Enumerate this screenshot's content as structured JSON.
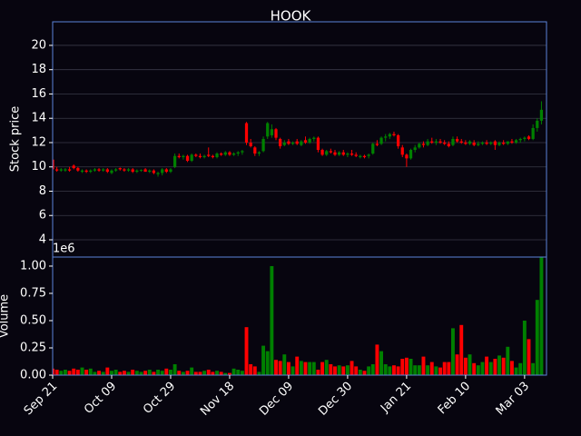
{
  "chart_data": {
    "type": "candlestick",
    "title": "HOOK",
    "ylabel": "Stock price",
    "volume_label": "Volume",
    "volume_offset_label": "1e6",
    "up_color": "#008000",
    "down_color": "#ff0000",
    "grid": true,
    "xlim": [
      0,
      117.2
    ],
    "ylim": [
      2.58,
      21.94
    ],
    "volume_ylim": [
      0,
      1.083
    ],
    "yticks": [
      4,
      6,
      8,
      10,
      12,
      14,
      16,
      18,
      20
    ],
    "volume_yticks": [
      {
        "value": 0,
        "label": "0.00"
      },
      0.25,
      {
        "value": 0.5,
        "label": "0.50"
      },
      0.75,
      {
        "value": 1,
        "label": "1.00"
      }
    ],
    "xticks": [
      {
        "value": 0,
        "label": "Sep 21"
      },
      {
        "value": 14,
        "label": "Oct 09"
      },
      {
        "value": 28,
        "label": "Oct 29"
      },
      {
        "value": 42,
        "label": "Nov 18"
      },
      {
        "value": 56,
        "label": "Dec 09"
      },
      {
        "value": 70,
        "label": "Dec 30"
      },
      {
        "value": 84,
        "label": "Jan 21"
      },
      {
        "value": 98,
        "label": "Feb 10"
      },
      {
        "value": 112,
        "label": "Mar 03"
      }
    ],
    "candles": [
      {
        "open": 10.6,
        "high": 10.9,
        "low": 9.7,
        "close": 9.8,
        "volume": 0.06
      },
      {
        "open": 9.8,
        "high": 10.0,
        "low": 9.6,
        "close": 9.7,
        "volume": 0.05
      },
      {
        "open": 9.7,
        "high": 9.9,
        "low": 9.6,
        "close": 9.8,
        "volume": 0.04
      },
      {
        "open": 9.7,
        "high": 9.9,
        "low": 9.6,
        "close": 9.8,
        "volume": 0.05
      },
      {
        "open": 9.8,
        "high": 10.0,
        "low": 9.6,
        "close": 9.7,
        "volume": 0.04
      },
      {
        "open": 10.1,
        "high": 10.2,
        "low": 9.8,
        "close": 9.9,
        "volume": 0.06
      },
      {
        "open": 9.9,
        "high": 10.0,
        "low": 9.6,
        "close": 9.7,
        "volume": 0.05
      },
      {
        "open": 9.6,
        "high": 9.8,
        "low": 9.5,
        "close": 9.7,
        "volume": 0.07
      },
      {
        "open": 9.7,
        "high": 9.8,
        "low": 9.5,
        "close": 9.6,
        "volume": 0.05
      },
      {
        "open": 9.6,
        "high": 9.8,
        "low": 9.5,
        "close": 9.7,
        "volume": 0.06
      },
      {
        "open": 9.7,
        "high": 9.9,
        "low": 9.6,
        "close": 9.8,
        "volume": 0.03
      },
      {
        "open": 9.8,
        "high": 9.9,
        "low": 9.6,
        "close": 9.7,
        "volume": 0.04
      },
      {
        "open": 9.7,
        "high": 9.9,
        "low": 9.6,
        "close": 9.8,
        "volume": 0.03
      },
      {
        "open": 9.8,
        "high": 9.9,
        "low": 9.5,
        "close": 9.6,
        "volume": 0.07
      },
      {
        "open": 9.5,
        "high": 9.8,
        "low": 9.4,
        "close": 9.7,
        "volume": 0.04
      },
      {
        "open": 9.7,
        "high": 9.9,
        "low": 9.6,
        "close": 9.8,
        "volume": 0.05
      },
      {
        "open": 9.9,
        "high": 9.95,
        "low": 9.7,
        "close": 9.8,
        "volume": 0.03
      },
      {
        "open": 9.8,
        "high": 9.9,
        "low": 9.6,
        "close": 9.7,
        "volume": 0.04
      },
      {
        "open": 9.7,
        "high": 9.9,
        "low": 9.6,
        "close": 9.8,
        "volume": 0.03
      },
      {
        "open": 9.8,
        "high": 9.9,
        "low": 9.5,
        "close": 9.6,
        "volume": 0.05
      },
      {
        "open": 9.6,
        "high": 9.8,
        "low": 9.5,
        "close": 9.7,
        "volume": 0.04
      },
      {
        "open": 9.7,
        "high": 9.8,
        "low": 9.6,
        "close": 9.75,
        "volume": 0.03
      },
      {
        "open": 9.8,
        "high": 9.9,
        "low": 9.6,
        "close": 9.6,
        "volume": 0.04
      },
      {
        "open": 9.6,
        "high": 9.8,
        "low": 9.5,
        "close": 9.7,
        "volume": 0.05
      },
      {
        "open": 9.7,
        "high": 9.8,
        "low": 9.4,
        "close": 9.5,
        "volume": 0.03
      },
      {
        "open": 9.4,
        "high": 9.6,
        "low": 9.2,
        "close": 9.5,
        "volume": 0.05
      },
      {
        "open": 9.5,
        "high": 9.9,
        "low": 9.3,
        "close": 9.8,
        "volume": 0.04
      },
      {
        "open": 9.8,
        "high": 9.9,
        "low": 9.5,
        "close": 9.6,
        "volume": 0.06
      },
      {
        "open": 9.6,
        "high": 9.9,
        "low": 9.5,
        "close": 9.8,
        "volume": 0.05
      },
      {
        "open": 10.0,
        "high": 11.1,
        "low": 9.9,
        "close": 10.9,
        "volume": 0.1
      },
      {
        "open": 10.9,
        "high": 11.1,
        "low": 10.7,
        "close": 10.8,
        "volume": 0.04
      },
      {
        "open": 10.8,
        "high": 11.0,
        "low": 10.6,
        "close": 10.9,
        "volume": 0.03
      },
      {
        "open": 10.9,
        "high": 11.0,
        "low": 10.4,
        "close": 10.5,
        "volume": 0.04
      },
      {
        "open": 10.5,
        "high": 11.1,
        "low": 10.4,
        "close": 11.0,
        "volume": 0.07
      },
      {
        "open": 11.0,
        "high": 11.1,
        "low": 10.8,
        "close": 10.9,
        "volume": 0.03
      },
      {
        "open": 10.9,
        "high": 11.1,
        "low": 10.7,
        "close": 10.8,
        "volume": 0.03
      },
      {
        "open": 10.8,
        "high": 11.0,
        "low": 10.7,
        "close": 10.9,
        "volume": 0.04
      },
      {
        "open": 11.0,
        "high": 11.6,
        "low": 10.8,
        "close": 10.9,
        "volume": 0.05
      },
      {
        "open": 10.9,
        "high": 11.0,
        "low": 10.7,
        "close": 10.8,
        "volume": 0.03
      },
      {
        "open": 10.8,
        "high": 11.2,
        "low": 10.7,
        "close": 11.1,
        "volume": 0.04
      },
      {
        "open": 11.1,
        "high": 11.2,
        "low": 10.9,
        "close": 11.0,
        "volume": 0.03
      },
      {
        "open": 11.0,
        "high": 11.3,
        "low": 10.9,
        "close": 11.2,
        "volume": 0.02
      },
      {
        "open": 11.2,
        "high": 11.3,
        "low": 10.9,
        "close": 11.0,
        "volume": 0.02
      },
      {
        "open": 11.0,
        "high": 11.2,
        "low": 10.9,
        "close": 11.1,
        "volume": 0.06
      },
      {
        "open": 11.1,
        "high": 11.3,
        "low": 10.9,
        "close": 11.2,
        "volume": 0.05
      },
      {
        "open": 11.2,
        "high": 11.4,
        "low": 11.0,
        "close": 11.3,
        "volume": 0.04
      },
      {
        "open": 13.6,
        "high": 13.7,
        "low": 11.8,
        "close": 12.0,
        "volume": 0.44
      },
      {
        "open": 12.0,
        "high": 12.3,
        "low": 11.6,
        "close": 11.7,
        "volume": 0.1
      },
      {
        "open": 11.6,
        "high": 11.7,
        "low": 10.9,
        "close": 11.1,
        "volume": 0.08
      },
      {
        "open": 11.1,
        "high": 11.3,
        "low": 10.9,
        "close": 11.2,
        "volume": 0.03
      },
      {
        "open": 11.3,
        "high": 12.5,
        "low": 11.2,
        "close": 12.3,
        "volume": 0.27
      },
      {
        "open": 12.5,
        "high": 13.7,
        "low": 12.3,
        "close": 13.6,
        "volume": 0.22
      },
      {
        "open": 12.6,
        "high": 13.5,
        "low": 12.4,
        "close": 13.1,
        "volume": 1.0
      },
      {
        "open": 13.1,
        "high": 13.2,
        "low": 12.2,
        "close": 12.4,
        "volume": 0.14
      },
      {
        "open": 12.3,
        "high": 12.4,
        "low": 11.5,
        "close": 11.7,
        "volume": 0.13
      },
      {
        "open": 11.8,
        "high": 12.2,
        "low": 11.7,
        "close": 12.0,
        "volume": 0.19
      },
      {
        "open": 12.1,
        "high": 12.3,
        "low": 11.8,
        "close": 11.9,
        "volume": 0.12
      },
      {
        "open": 11.9,
        "high": 12.1,
        "low": 11.8,
        "close": 12.0,
        "volume": 0.08
      },
      {
        "open": 12.1,
        "high": 12.3,
        "low": 11.8,
        "close": 11.9,
        "volume": 0.17
      },
      {
        "open": 11.8,
        "high": 12.2,
        "low": 11.7,
        "close": 12.1,
        "volume": 0.13
      },
      {
        "open": 12.2,
        "high": 12.5,
        "low": 11.9,
        "close": 12.0,
        "volume": 0.12
      },
      {
        "open": 12.0,
        "high": 12.4,
        "low": 11.9,
        "close": 12.3,
        "volume": 0.12
      },
      {
        "open": 12.3,
        "high": 12.5,
        "low": 12.1,
        "close": 12.4,
        "volume": 0.12
      },
      {
        "open": 12.4,
        "high": 12.5,
        "low": 11.2,
        "close": 11.4,
        "volume": 0.05
      },
      {
        "open": 11.4,
        "high": 11.5,
        "low": 10.9,
        "close": 11.0,
        "volume": 0.12
      },
      {
        "open": 11.0,
        "high": 11.4,
        "low": 10.9,
        "close": 11.3,
        "volume": 0.14
      },
      {
        "open": 11.3,
        "high": 11.5,
        "low": 11.1,
        "close": 11.2,
        "volume": 0.1
      },
      {
        "open": 11.2,
        "high": 11.4,
        "low": 10.9,
        "close": 11.0,
        "volume": 0.08
      },
      {
        "open": 11.0,
        "high": 11.3,
        "low": 10.9,
        "close": 11.2,
        "volume": 0.09
      },
      {
        "open": 11.2,
        "high": 11.4,
        "low": 10.9,
        "close": 11.0,
        "volume": 0.08
      },
      {
        "open": 11.0,
        "high": 11.2,
        "low": 10.8,
        "close": 11.1,
        "volume": 0.09
      },
      {
        "open": 11.1,
        "high": 11.4,
        "low": 10.9,
        "close": 11.0,
        "volume": 0.13
      },
      {
        "open": 11.0,
        "high": 11.2,
        "low": 10.8,
        "close": 10.9,
        "volume": 0.08
      },
      {
        "open": 10.8,
        "high": 11.0,
        "low": 10.7,
        "close": 10.9,
        "volume": 0.05
      },
      {
        "open": 10.9,
        "high": 11.0,
        "low": 10.7,
        "close": 10.8,
        "volume": 0.04
      },
      {
        "open": 10.9,
        "high": 11.1,
        "low": 10.7,
        "close": 11.0,
        "volume": 0.08
      },
      {
        "open": 11.1,
        "high": 12.0,
        "low": 11.0,
        "close": 11.9,
        "volume": 0.1
      },
      {
        "open": 11.9,
        "high": 12.2,
        "low": 11.7,
        "close": 11.8,
        "volume": 0.28
      },
      {
        "open": 11.9,
        "high": 12.5,
        "low": 11.8,
        "close": 12.4,
        "volume": 0.22
      },
      {
        "open": 12.4,
        "high": 12.7,
        "low": 12.1,
        "close": 12.5,
        "volume": 0.1
      },
      {
        "open": 12.5,
        "high": 12.8,
        "low": 12.3,
        "close": 12.7,
        "volume": 0.08
      },
      {
        "open": 12.7,
        "high": 12.9,
        "low": 12.5,
        "close": 12.6,
        "volume": 0.09
      },
      {
        "open": 12.6,
        "high": 12.7,
        "low": 11.5,
        "close": 11.7,
        "volume": 0.08
      },
      {
        "open": 11.6,
        "high": 11.8,
        "low": 10.8,
        "close": 11.0,
        "volume": 0.15
      },
      {
        "open": 11.0,
        "high": 11.1,
        "low": 10.0,
        "close": 10.7,
        "volume": 0.16
      },
      {
        "open": 10.7,
        "high": 11.5,
        "low": 10.6,
        "close": 11.4,
        "volume": 0.15
      },
      {
        "open": 11.4,
        "high": 11.8,
        "low": 11.2,
        "close": 11.6,
        "volume": 0.09
      },
      {
        "open": 11.6,
        "high": 12.0,
        "low": 11.5,
        "close": 11.9,
        "volume": 0.09
      },
      {
        "open": 11.9,
        "high": 12.1,
        "low": 11.6,
        "close": 11.8,
        "volume": 0.17
      },
      {
        "open": 11.8,
        "high": 12.3,
        "low": 11.7,
        "close": 12.1,
        "volume": 0.09
      },
      {
        "open": 12.1,
        "high": 12.4,
        "low": 11.9,
        "close": 12.0,
        "volume": 0.12
      },
      {
        "open": 12.0,
        "high": 12.3,
        "low": 11.8,
        "close": 12.1,
        "volume": 0.08
      },
      {
        "open": 12.1,
        "high": 12.3,
        "low": 11.9,
        "close": 12.0,
        "volume": 0.07
      },
      {
        "open": 12.0,
        "high": 12.2,
        "low": 11.8,
        "close": 11.9,
        "volume": 0.12
      },
      {
        "open": 11.9,
        "high": 12.1,
        "low": 11.6,
        "close": 11.7,
        "volume": 0.12
      },
      {
        "open": 11.8,
        "high": 12.5,
        "low": 11.7,
        "close": 12.3,
        "volume": 0.43
      },
      {
        "open": 12.3,
        "high": 12.5,
        "low": 12.0,
        "close": 12.1,
        "volume": 0.19
      },
      {
        "open": 12.1,
        "high": 12.3,
        "low": 11.9,
        "close": 12.0,
        "volume": 0.46
      },
      {
        "open": 12.0,
        "high": 12.2,
        "low": 11.8,
        "close": 11.9,
        "volume": 0.16
      },
      {
        "open": 11.9,
        "high": 12.2,
        "low": 11.8,
        "close": 12.1,
        "volume": 0.19
      },
      {
        "open": 12.0,
        "high": 12.2,
        "low": 11.7,
        "close": 11.8,
        "volume": 0.11
      },
      {
        "open": 11.8,
        "high": 12.1,
        "low": 11.7,
        "close": 11.9,
        "volume": 0.09
      },
      {
        "open": 11.9,
        "high": 12.1,
        "low": 11.8,
        "close": 12.0,
        "volume": 0.12
      },
      {
        "open": 12.0,
        "high": 12.2,
        "low": 11.8,
        "close": 11.9,
        "volume": 0.17
      },
      {
        "open": 11.9,
        "high": 12.1,
        "low": 11.8,
        "close": 12.0,
        "volume": 0.12
      },
      {
        "open": 12.1,
        "high": 12.2,
        "low": 11.4,
        "close": 11.8,
        "volume": 0.15
      },
      {
        "open": 11.8,
        "high": 12.1,
        "low": 11.7,
        "close": 12.0,
        "volume": 0.18
      },
      {
        "open": 12.0,
        "high": 12.2,
        "low": 11.8,
        "close": 11.9,
        "volume": 0.16
      },
      {
        "open": 11.9,
        "high": 12.1,
        "low": 11.8,
        "close": 12.1,
        "volume": 0.26
      },
      {
        "open": 12.1,
        "high": 12.3,
        "low": 11.9,
        "close": 12.0,
        "volume": 0.13
      },
      {
        "open": 12.0,
        "high": 12.3,
        "low": 11.9,
        "close": 12.2,
        "volume": 0.07
      },
      {
        "open": 12.2,
        "high": 12.4,
        "low": 12.0,
        "close": 12.3,
        "volume": 0.11
      },
      {
        "open": 12.3,
        "high": 12.5,
        "low": 12.1,
        "close": 12.4,
        "volume": 0.5
      },
      {
        "open": 12.5,
        "high": 12.6,
        "low": 12.2,
        "close": 12.3,
        "volume": 0.33
      },
      {
        "open": 12.3,
        "high": 13.5,
        "low": 12.2,
        "close": 13.2,
        "volume": 0.11
      },
      {
        "open": 13.2,
        "high": 14.0,
        "low": 12.9,
        "close": 13.8,
        "volume": 0.69
      },
      {
        "open": 13.8,
        "high": 15.4,
        "low": 13.5,
        "close": 14.7,
        "volume": 1.08
      }
    ]
  }
}
